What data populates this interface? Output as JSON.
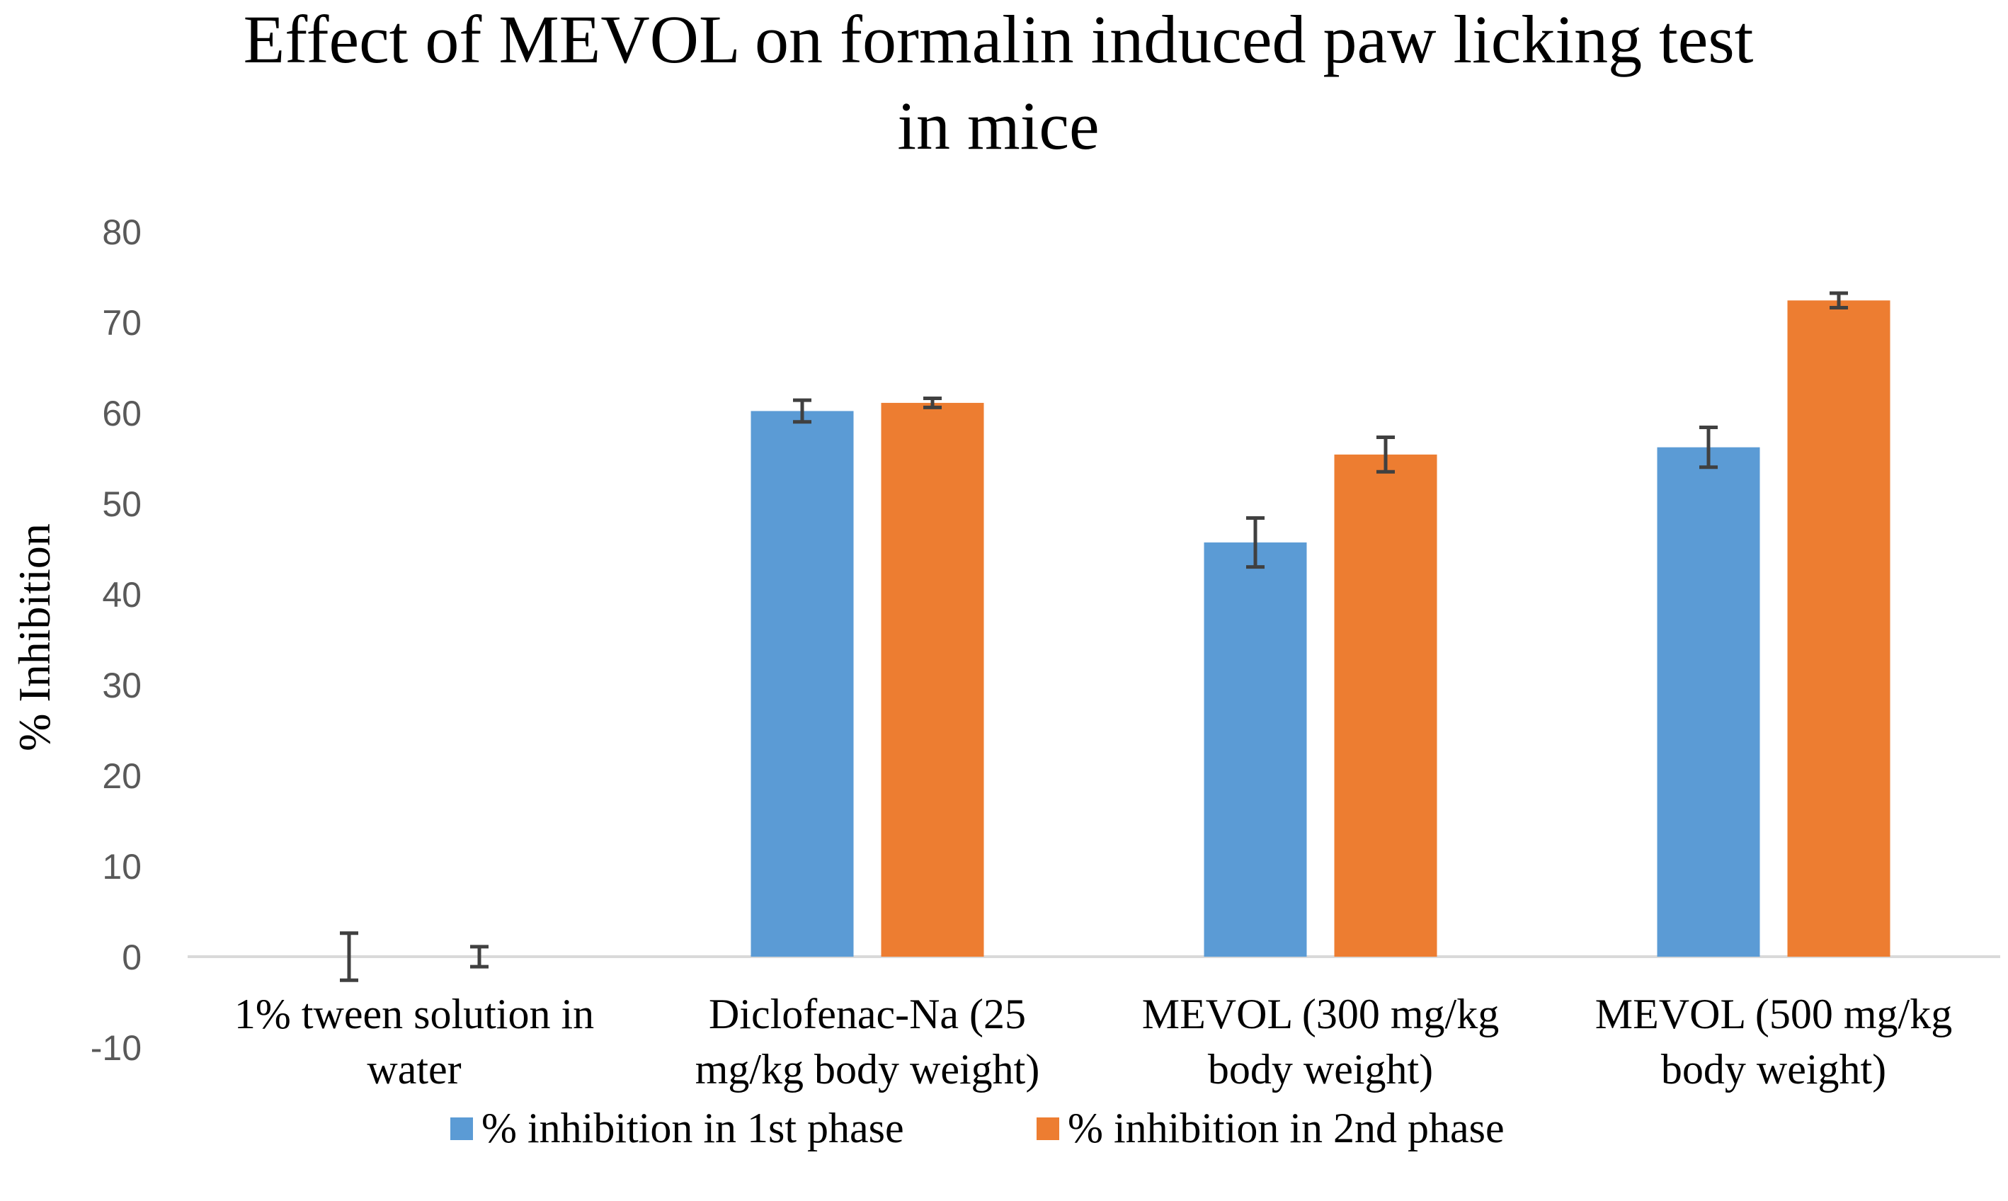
{
  "chart_data": {
    "type": "bar",
    "title_lines": [
      "Effect of MEVOL on formalin induced paw licking test",
      "in mice"
    ],
    "xlabel": "",
    "ylabel": "% Inhibition",
    "ylim": [
      -10,
      80
    ],
    "yticks": [
      80,
      70,
      60,
      50,
      40,
      30,
      20,
      10,
      0,
      -10
    ],
    "grid": false,
    "legend_position": "bottom",
    "categories": [
      [
        "1% tween solution in",
        "water"
      ],
      [
        "Diclofenac-Na (25",
        "mg/kg body weight)"
      ],
      [
        "MEVOL (300 mg/kg",
        "body weight)"
      ],
      [
        "MEVOL (500 mg/kg",
        "body weight)"
      ]
    ],
    "series": [
      {
        "name": "% inhibition in 1st phase",
        "color": "#5B9BD5",
        "values": [
          0,
          60.2,
          45.7,
          56.2
        ],
        "errors": [
          2.6,
          1.2,
          2.7,
          2.2
        ]
      },
      {
        "name": "% inhibition in 2nd phase",
        "color": "#ED7D31",
        "values": [
          0,
          61.1,
          55.4,
          72.4
        ],
        "errors": [
          1.1,
          0.5,
          1.9,
          0.8
        ]
      }
    ],
    "error_bar_color": "#404040"
  }
}
